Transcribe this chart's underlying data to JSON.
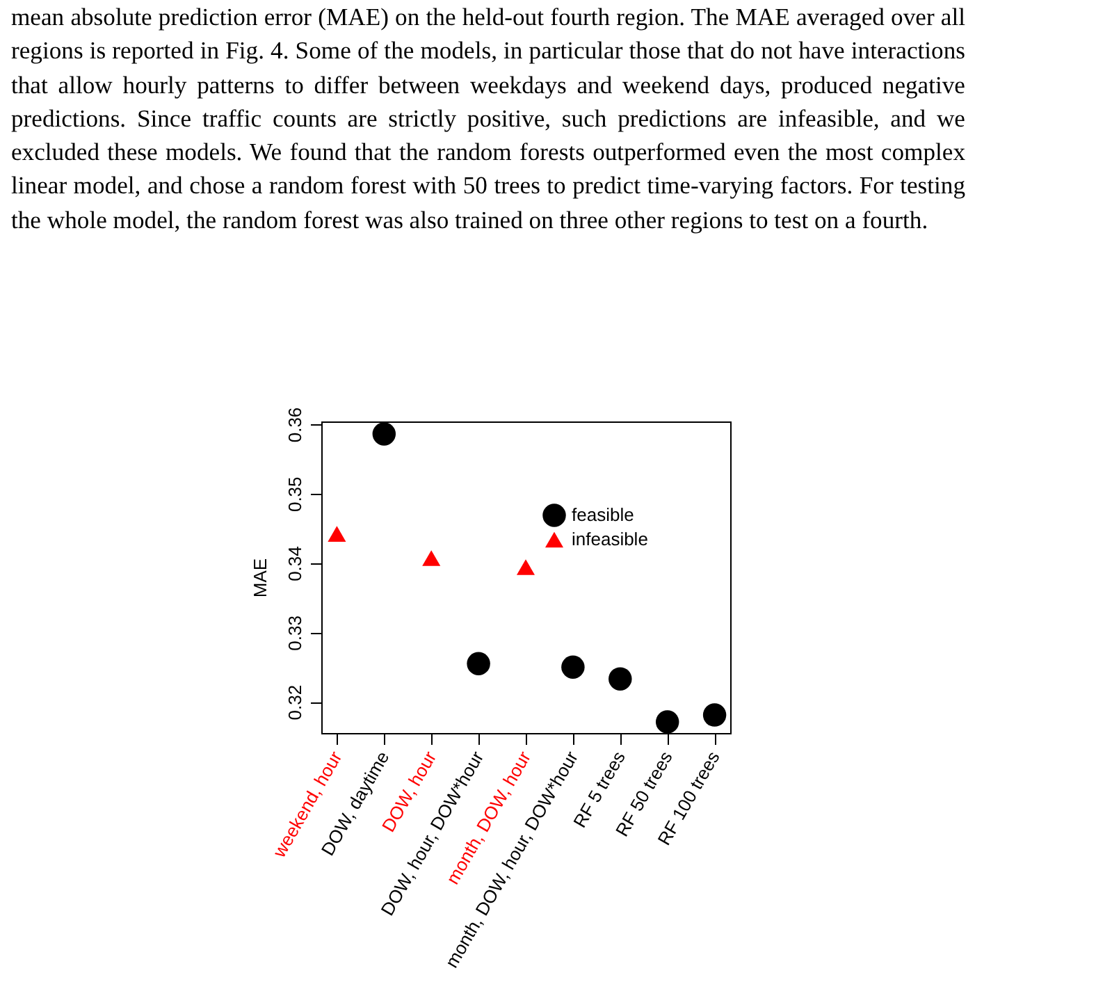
{
  "chart_data": {
    "type": "scatter",
    "ylabel": "MAE",
    "annotations": [
      "mean absolute prediction error (MAE) on the held-out fourth region. The MAE averaged over all regions is reported in Fig. 4. Some of the models, in particular those that do not have interactions that allow hourly patterns to differ between weekdays and weekend days, produced negative predictions. Since traffic counts are strictly positive, such predictions are infeasible, and we excluded these models. We found that the random forests outperformed even the most complex linear model, and chose a random forest with 50 trees to predict time-varying factors. For testing the whole model, the random forest was also trained on three other regions to test on a fourth."
    ],
    "categories": [
      "weekend, hour",
      "DOW, daytime",
      "DOW, hour",
      "DOW, hour, DOW*hour",
      "month, DOW, hour",
      "month, DOW, hour, DOW*hour",
      "RF 5 trees",
      "RF 50 trees",
      "RF 100 trees"
    ],
    "series": [
      {
        "name": "feasible",
        "color": "#000000",
        "marker": "circle",
        "values": [
          null,
          0.3586,
          null,
          0.3255,
          null,
          0.325,
          0.3233,
          0.3171,
          0.3181
        ]
      },
      {
        "name": "infeasible",
        "color": "#ff0000",
        "marker": "triangle",
        "values": [
          0.3442,
          null,
          0.3407,
          null,
          0.3394,
          null,
          null,
          null,
          null
        ]
      }
    ],
    "ylim": [
      0.3155,
      0.3604
    ],
    "yticks": [
      0.32,
      0.33,
      0.34,
      0.35,
      0.36
    ],
    "grid": false,
    "legend": "top right"
  }
}
